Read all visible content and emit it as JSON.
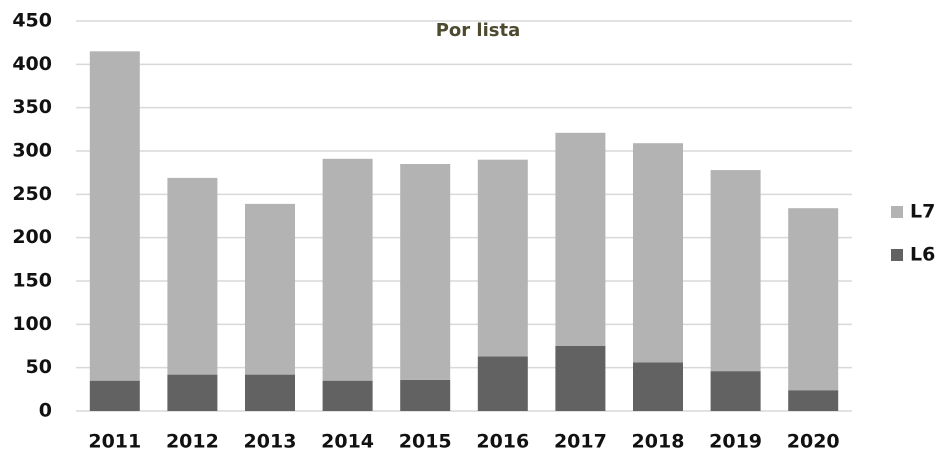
{
  "chart_data": {
    "type": "stacked_bar",
    "title": "Por lista",
    "categories": [
      "2011",
      "2012",
      "2013",
      "2014",
      "2015",
      "2016",
      "2017",
      "2018",
      "2019",
      "2020"
    ],
    "series": [
      {
        "name": "L6",
        "color": "#626262",
        "values": [
          35,
          42,
          42,
          35,
          36,
          63,
          75,
          56,
          46,
          24
        ]
      },
      {
        "name": "L7",
        "color": "#b3b3b3",
        "values": [
          380,
          227,
          197,
          256,
          249,
          227,
          246,
          253,
          232,
          210
        ]
      }
    ],
    "ylim": [
      0,
      450
    ],
    "yticks": [
      0,
      50,
      100,
      150,
      200,
      250,
      300,
      350,
      400,
      450
    ],
    "grid": true,
    "legend": "right"
  }
}
